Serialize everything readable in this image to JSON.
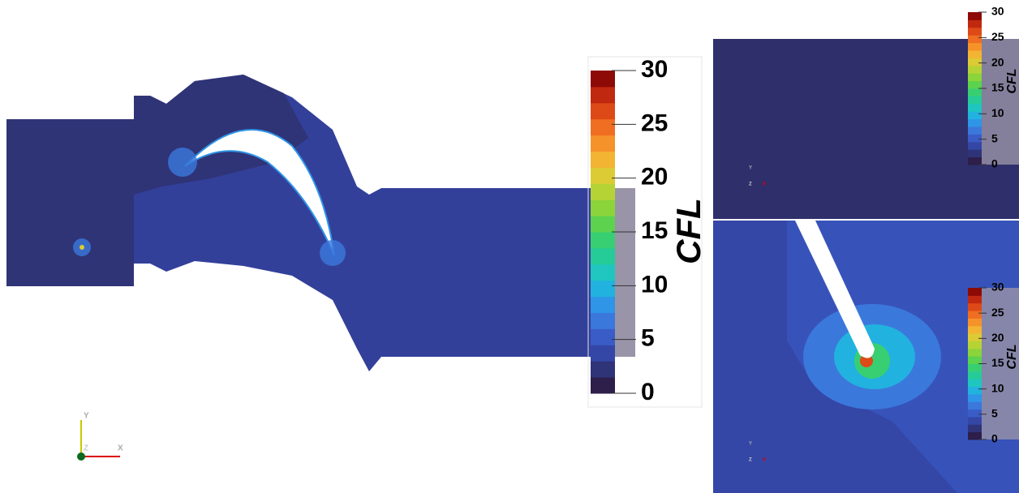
{
  "views": [
    {
      "colorbar": {
        "title": "CFL",
        "range": [
          0,
          30
        ],
        "ticks": [
          0,
          5,
          10,
          15,
          20,
          25,
          30
        ]
      },
      "axes": {
        "x": "X",
        "y": "Y",
        "z": "Z"
      }
    },
    {
      "colorbar": {
        "title": "CFL",
        "range": [
          0,
          30
        ],
        "ticks": [
          0,
          5,
          10,
          15,
          20,
          25,
          30
        ]
      },
      "axes": {
        "x": "X",
        "y": "Y",
        "z": "Z"
      }
    },
    {
      "colorbar": {
        "title": "CFL",
        "range": [
          0,
          30
        ],
        "ticks": [
          0,
          5,
          10,
          15,
          20,
          25,
          30
        ]
      },
      "axes": {
        "x": "X",
        "y": "Y",
        "z": "Z"
      }
    }
  ],
  "colormap": [
    "#2d1e4a",
    "#2f3378",
    "#3447a6",
    "#3a5cc6",
    "#3b78dc",
    "#2f95e6",
    "#22b2df",
    "#1fc6c0",
    "#25cc98",
    "#38cf72",
    "#5cd24e",
    "#8bd43a",
    "#b6d336",
    "#dccb35",
    "#f2b432",
    "#f6922a",
    "#ef6e21",
    "#dd4a17",
    "#c0280f",
    "#8e0a06"
  ]
}
